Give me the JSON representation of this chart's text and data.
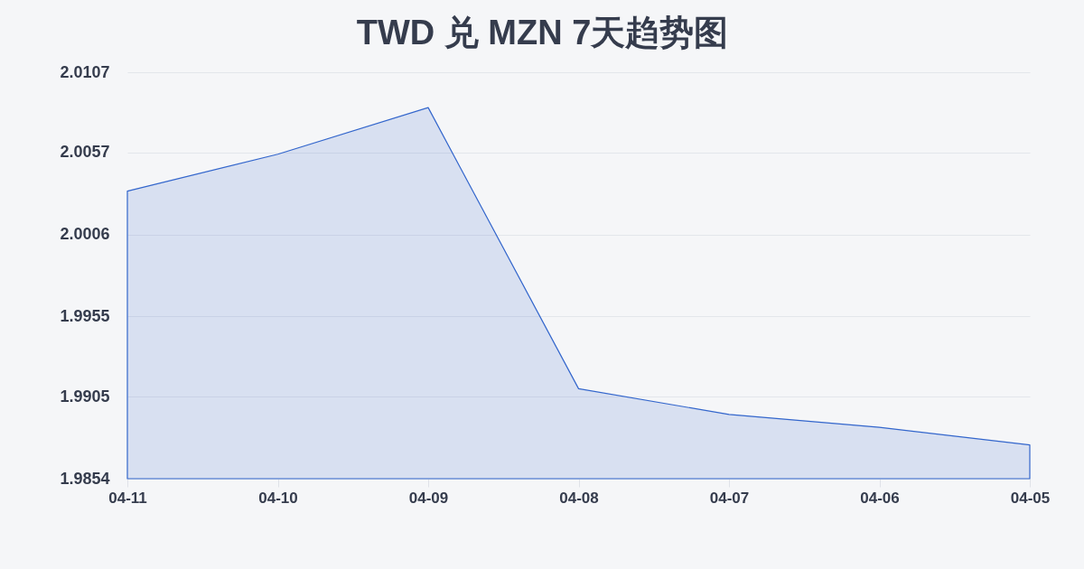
{
  "chart_data": {
    "type": "area",
    "title": "TWD 兑 MZN 7天趋势图",
    "categories": [
      "04-11",
      "04-10",
      "04-09",
      "04-08",
      "04-07",
      "04-06",
      "04-05"
    ],
    "values": [
      2.0033,
      2.0056,
      2.0085,
      1.991,
      1.9894,
      1.9886,
      1.9875
    ],
    "color": "#3366cc",
    "ylim": [
      1.9854,
      2.0107
    ],
    "yticks": [
      1.9854,
      1.9905,
      1.9955,
      2.0006,
      2.0057,
      2.0107
    ],
    "grid": "y"
  }
}
